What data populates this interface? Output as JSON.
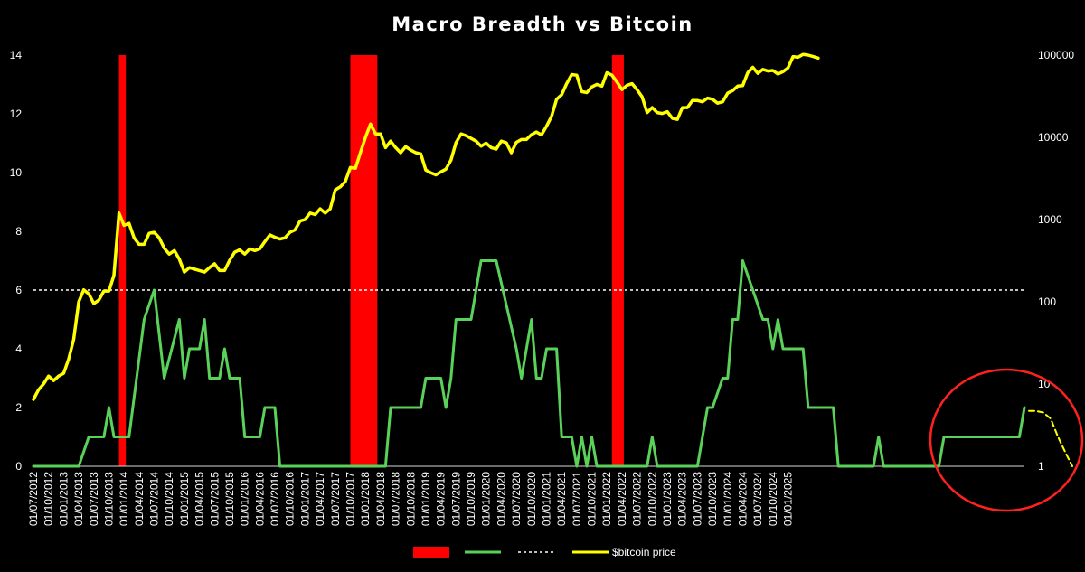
{
  "chart_data": {
    "type": "line",
    "title": "Macro Breadth vs Bitcoin",
    "colors": {
      "background": "#000000",
      "breadth": "#5ad25a",
      "bitcoin": "#ffff00",
      "highlight": "#ff0000",
      "threshold": "#ffffff",
      "annotation_circle": "#ff2020",
      "projection": "#ffff00"
    },
    "x_tick_labels": [
      "01/07/2012",
      "01/10/2012",
      "01/01/2013",
      "01/04/2013",
      "01/07/2013",
      "01/10/2013",
      "01/01/2014",
      "01/04/2014",
      "01/07/2014",
      "01/10/2014",
      "01/01/2015",
      "01/04/2015",
      "01/07/2015",
      "01/10/2015",
      "01/01/2016",
      "01/04/2016",
      "01/07/2016",
      "01/10/2016",
      "01/01/2017",
      "01/04/2017",
      "01/07/2017",
      "01/10/2017",
      "01/01/2018",
      "01/04/2018",
      "01/07/2018",
      "01/10/2018",
      "01/01/2019",
      "01/04/2019",
      "01/07/2019",
      "01/10/2019",
      "01/01/2020",
      "01/04/2020",
      "01/07/2020",
      "01/10/2020",
      "01/01/2021",
      "01/04/2021",
      "01/07/2021",
      "01/10/2021",
      "01/01/2022",
      "01/04/2022",
      "01/07/2022",
      "01/10/2022",
      "01/01/2023",
      "01/04/2023",
      "01/07/2023",
      "01/10/2023",
      "01/01/2024",
      "01/04/2024",
      "01/07/2024",
      "01/10/2024",
      "01/01/2025"
    ],
    "x_unit": "months since 01/07/2012 at month granularity (index along the x axis)",
    "left_axis": {
      "ylim": [
        0,
        14
      ],
      "ticks": [
        0,
        2,
        4,
        6,
        8,
        10,
        12,
        14
      ]
    },
    "right_axis": {
      "scale": "log",
      "ylim": [
        1,
        100000
      ],
      "ticks": [
        "1",
        "10",
        "100",
        "1000",
        "10000",
        "100000"
      ]
    },
    "threshold": {
      "value": 6,
      "style": "dashed"
    },
    "series": [
      {
        "name": "",
        "role": "breadth",
        "axis": "left",
        "points": [
          [
            0,
            0
          ],
          [
            9,
            0
          ],
          [
            11,
            1
          ],
          [
            14,
            1
          ],
          [
            15,
            2
          ],
          [
            16,
            1
          ],
          [
            19,
            1
          ],
          [
            22,
            5
          ],
          [
            24,
            6
          ],
          [
            26,
            3
          ],
          [
            29,
            5
          ],
          [
            30,
            3
          ],
          [
            31,
            4
          ],
          [
            33,
            4
          ],
          [
            34,
            5
          ],
          [
            35,
            3
          ],
          [
            37,
            3
          ],
          [
            38,
            4
          ],
          [
            39,
            3
          ],
          [
            41,
            3
          ],
          [
            42,
            1
          ],
          [
            45,
            1
          ],
          [
            46,
            2
          ],
          [
            48,
            2
          ],
          [
            49,
            0
          ],
          [
            70,
            0
          ],
          [
            71,
            2
          ],
          [
            77,
            2
          ],
          [
            78,
            3
          ],
          [
            81,
            3
          ],
          [
            82,
            2
          ],
          [
            83,
            3
          ],
          [
            84,
            5
          ],
          [
            87,
            5
          ],
          [
            89,
            7
          ],
          [
            92,
            7
          ],
          [
            96,
            4
          ],
          [
            97,
            3
          ],
          [
            99,
            5
          ],
          [
            100,
            3
          ],
          [
            101,
            3
          ],
          [
            102,
            4
          ],
          [
            104,
            4
          ],
          [
            105,
            1
          ],
          [
            107,
            1
          ],
          [
            108,
            0
          ],
          [
            109,
            1
          ],
          [
            110,
            0
          ],
          [
            111,
            1
          ],
          [
            112,
            0
          ],
          [
            122,
            0
          ],
          [
            123,
            1
          ],
          [
            124,
            0
          ],
          [
            132,
            0
          ],
          [
            134,
            2
          ],
          [
            135,
            2
          ],
          [
            137,
            3
          ],
          [
            138,
            3
          ],
          [
            139,
            5
          ],
          [
            140,
            5
          ],
          [
            141,
            7
          ],
          [
            143,
            6
          ],
          [
            145,
            5
          ],
          [
            146,
            5
          ],
          [
            147,
            4
          ],
          [
            148,
            5
          ],
          [
            149,
            4
          ],
          [
            153,
            4
          ],
          [
            154,
            2
          ],
          [
            159,
            2
          ],
          [
            160,
            0
          ],
          [
            167,
            0
          ],
          [
            168,
            1
          ],
          [
            169,
            0
          ],
          [
            180,
            0
          ],
          [
            181,
            1
          ],
          [
            196,
            1
          ],
          [
            197,
            2
          ]
        ]
      },
      {
        "name": "$bitcoin price",
        "role": "bitcoin",
        "axis": "right",
        "points": [
          [
            0,
            6.5
          ],
          [
            1,
            8.5
          ],
          [
            2,
            10
          ],
          [
            3,
            12.5
          ],
          [
            4,
            11
          ],
          [
            5,
            12.5
          ],
          [
            6,
            13.5
          ],
          [
            7,
            20
          ],
          [
            8,
            35
          ],
          [
            9,
            100
          ],
          [
            10,
            140
          ],
          [
            11,
            125
          ],
          [
            12,
            95
          ],
          [
            13,
            105
          ],
          [
            14,
            135
          ],
          [
            15,
            135
          ],
          [
            16,
            210
          ],
          [
            17,
            1200
          ],
          [
            18,
            850
          ],
          [
            19,
            900
          ],
          [
            20,
            600
          ],
          [
            21,
            500
          ],
          [
            22,
            500
          ],
          [
            23,
            680
          ],
          [
            24,
            700
          ],
          [
            25,
            600
          ],
          [
            26,
            450
          ],
          [
            27,
            380
          ],
          [
            28,
            420
          ],
          [
            29,
            330
          ],
          [
            30,
            230
          ],
          [
            31,
            260
          ],
          [
            32,
            250
          ],
          [
            33,
            240
          ],
          [
            34,
            230
          ],
          [
            35,
            260
          ],
          [
            36,
            290
          ],
          [
            37,
            240
          ],
          [
            38,
            240
          ],
          [
            39,
            320
          ],
          [
            40,
            400
          ],
          [
            41,
            430
          ],
          [
            42,
            380
          ],
          [
            43,
            440
          ],
          [
            44,
            420
          ],
          [
            45,
            440
          ],
          [
            46,
            540
          ],
          [
            47,
            650
          ],
          [
            48,
            610
          ],
          [
            49,
            580
          ],
          [
            50,
            600
          ],
          [
            51,
            700
          ],
          [
            52,
            750
          ],
          [
            53,
            960
          ],
          [
            54,
            1000
          ],
          [
            55,
            1200
          ],
          [
            56,
            1150
          ],
          [
            57,
            1350
          ],
          [
            58,
            1200
          ],
          [
            59,
            1350
          ],
          [
            60,
            2300
          ],
          [
            61,
            2500
          ],
          [
            62,
            2900
          ],
          [
            63,
            4300
          ],
          [
            64,
            4200
          ],
          [
            65,
            6500
          ],
          [
            66,
            10000
          ],
          [
            67,
            14500
          ],
          [
            68,
            11000
          ],
          [
            69,
            11000
          ],
          [
            70,
            7500
          ],
          [
            71,
            9000
          ],
          [
            72,
            7500
          ],
          [
            73,
            6500
          ],
          [
            74,
            7700
          ],
          [
            75,
            7000
          ],
          [
            76,
            6500
          ],
          [
            77,
            6300
          ],
          [
            78,
            4000
          ],
          [
            79,
            3700
          ],
          [
            80,
            3500
          ],
          [
            81,
            3800
          ],
          [
            82,
            4100
          ],
          [
            83,
            5300
          ],
          [
            84,
            8600
          ],
          [
            85,
            11000
          ],
          [
            86,
            10500
          ],
          [
            87,
            9700
          ],
          [
            88,
            9000
          ],
          [
            89,
            7800
          ],
          [
            90,
            8500
          ],
          [
            91,
            7500
          ],
          [
            92,
            7200
          ],
          [
            93,
            9000
          ],
          [
            94,
            8600
          ],
          [
            95,
            6500
          ],
          [
            96,
            8700
          ],
          [
            97,
            9400
          ],
          [
            98,
            9400
          ],
          [
            99,
            10800
          ],
          [
            100,
            11600
          ],
          [
            101,
            10700
          ],
          [
            102,
            13700
          ],
          [
            103,
            18000
          ],
          [
            104,
            29000
          ],
          [
            105,
            33000
          ],
          [
            106,
            45000
          ],
          [
            107,
            58000
          ],
          [
            108,
            57000
          ],
          [
            109,
            36000
          ],
          [
            110,
            35000
          ],
          [
            111,
            41000
          ],
          [
            112,
            44000
          ],
          [
            113,
            42000
          ],
          [
            114,
            61000
          ],
          [
            115,
            57000
          ],
          [
            116,
            47000
          ],
          [
            117,
            38000
          ],
          [
            118,
            43000
          ],
          [
            119,
            45000
          ],
          [
            120,
            38000
          ],
          [
            121,
            31000
          ],
          [
            122,
            20000
          ],
          [
            123,
            23000
          ],
          [
            124,
            20000
          ],
          [
            125,
            19500
          ],
          [
            126,
            20500
          ],
          [
            127,
            17000
          ],
          [
            128,
            16500
          ],
          [
            129,
            23000
          ],
          [
            130,
            23000
          ],
          [
            131,
            28000
          ],
          [
            132,
            28000
          ],
          [
            133,
            27000
          ],
          [
            134,
            30000
          ],
          [
            135,
            29000
          ],
          [
            136,
            26000
          ],
          [
            137,
            27000
          ],
          [
            138,
            34500
          ],
          [
            139,
            37000
          ],
          [
            140,
            42000
          ],
          [
            141,
            42500
          ],
          [
            142,
            61000
          ],
          [
            143,
            71000
          ],
          [
            144,
            60000
          ],
          [
            145,
            67000
          ],
          [
            146,
            64000
          ],
          [
            147,
            65000
          ],
          [
            148,
            59000
          ],
          [
            149,
            63000
          ],
          [
            150,
            70000
          ],
          [
            151,
            96000
          ],
          [
            152,
            94000
          ],
          [
            153,
            102000
          ],
          [
            154,
            100000
          ],
          [
            155,
            96000
          ],
          [
            156,
            92000
          ]
        ]
      },
      {
        "name": "",
        "role": "projection",
        "axis": "right",
        "points": [
          [
            156,
            4.7
          ],
          [
            157,
            4.7
          ],
          [
            158,
            4.5
          ],
          [
            159,
            3.8
          ],
          [
            160,
            2.3
          ],
          [
            161,
            1.5
          ],
          [
            162,
            1.0
          ]
        ]
      }
    ],
    "highlight_bands": [
      {
        "from": 17,
        "to": 18
      },
      {
        "from": 63,
        "to": 68
      },
      {
        "from": 115,
        "to": 117
      }
    ],
    "legend": {
      "position": "bottom-center",
      "entries": [
        {
          "label": "",
          "swatch": "bar",
          "color": "#ff0000"
        },
        {
          "label": "",
          "swatch": "line",
          "color": "#5ad25a"
        },
        {
          "label": "",
          "swatch": "dashed",
          "color": "#ffffff"
        },
        {
          "label": "$bitcoin price",
          "swatch": "line",
          "color": "#ffff00"
        }
      ]
    },
    "annotation": {
      "shape": "circle",
      "around": "2024–2025 breadth reading and dashed projection"
    }
  }
}
